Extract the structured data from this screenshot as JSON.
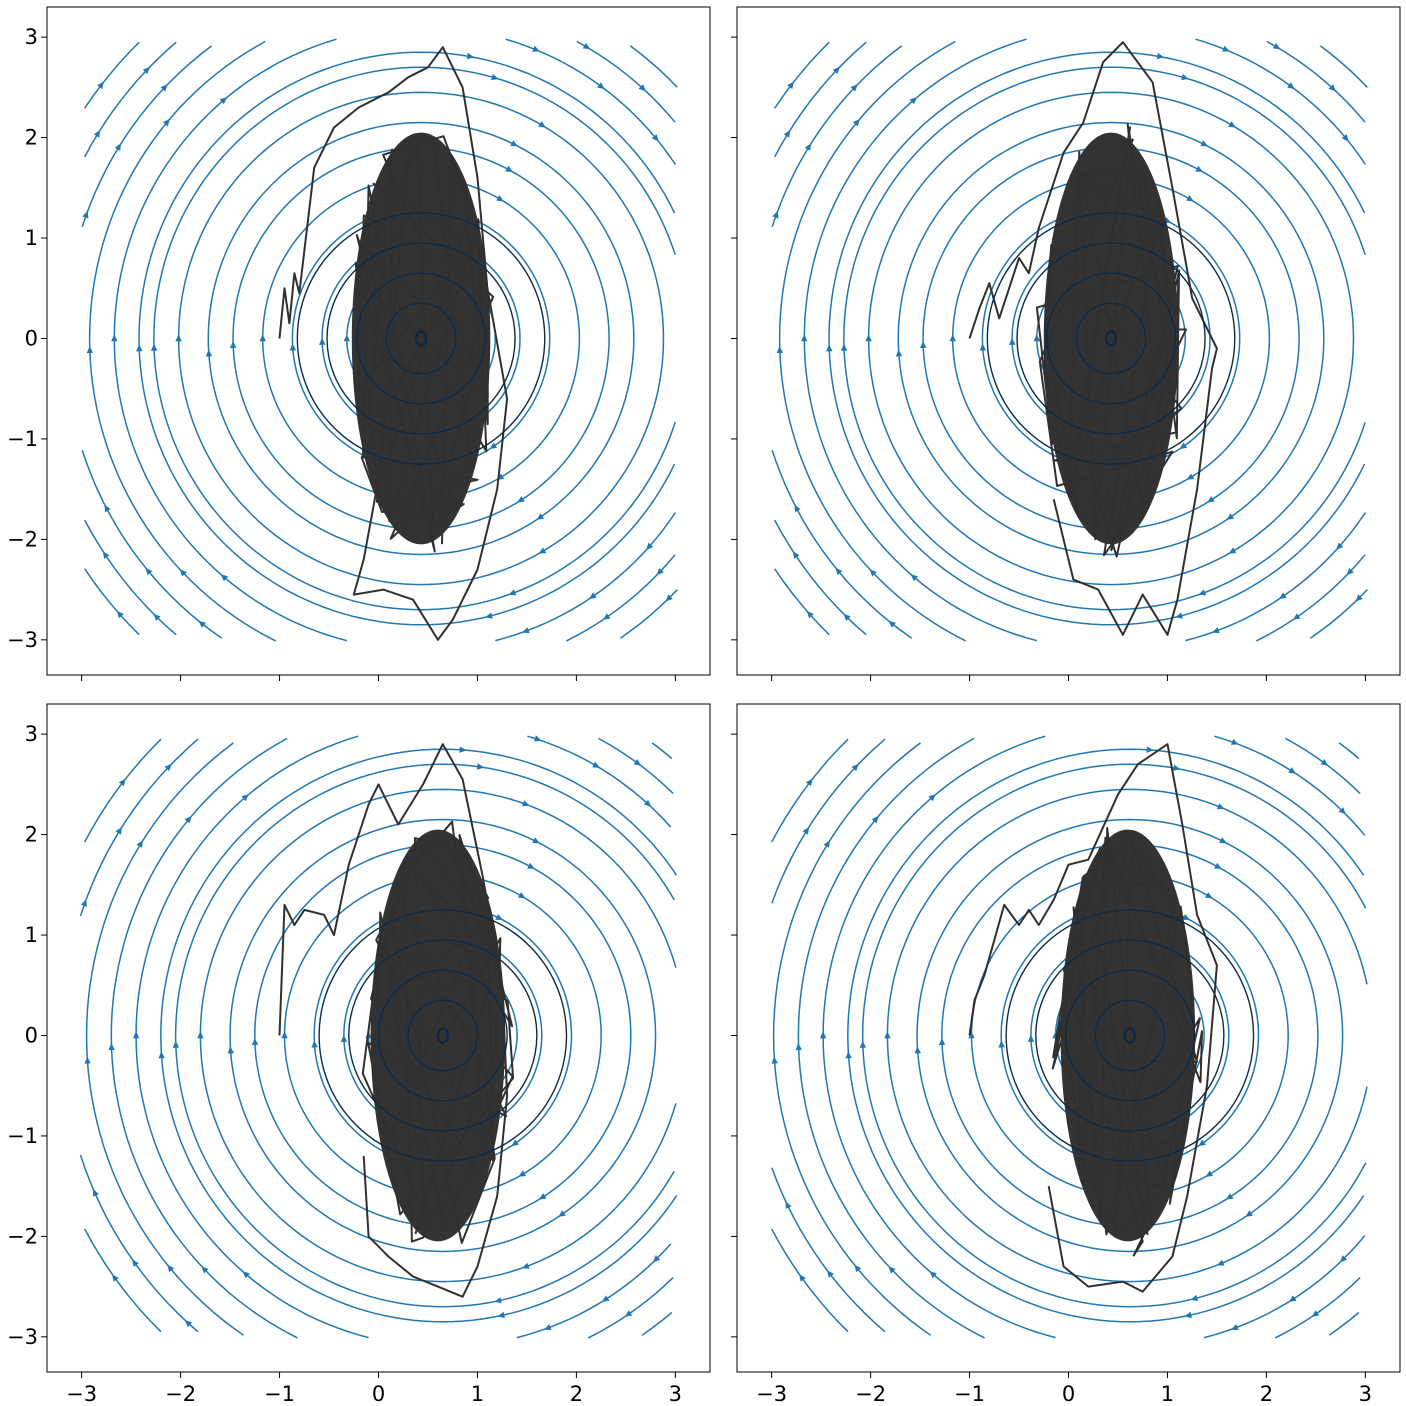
{
  "chart_data": [
    {
      "type": "streamplot",
      "panel": "top-left",
      "xlim": [
        -3.35,
        3.35
      ],
      "ylim": [
        -3.35,
        3.3
      ],
      "x_ticks": [
        -3,
        -2,
        -1,
        0,
        1,
        2,
        3
      ],
      "y_ticks": [
        -3,
        -2,
        -1,
        0,
        1,
        2,
        3
      ],
      "x_tick_labels_visible": false,
      "y_tick_labels_visible": true,
      "field_center": [
        0.43,
        0.0
      ],
      "stream_color": "#1f77b4",
      "trajectory_color": "#303030",
      "trajectory": [
        [
          -1.0,
          0.0
        ],
        [
          -0.95,
          0.5
        ],
        [
          -0.9,
          0.15
        ],
        [
          -0.85,
          0.65
        ],
        [
          -0.8,
          0.45
        ],
        [
          -0.65,
          1.7
        ],
        [
          -0.45,
          2.1
        ],
        [
          -0.2,
          2.3
        ],
        [
          0.1,
          2.45
        ],
        [
          0.3,
          2.6
        ],
        [
          0.5,
          2.7
        ],
        [
          0.65,
          2.9
        ],
        [
          0.85,
          2.5
        ],
        [
          1.0,
          1.6
        ],
        [
          1.1,
          0.5
        ],
        [
          1.3,
          -0.6
        ],
        [
          1.2,
          -1.5
        ],
        [
          1.0,
          -2.3
        ],
        [
          0.75,
          -2.8
        ],
        [
          0.6,
          -3.0
        ],
        [
          0.35,
          -2.6
        ],
        [
          0.05,
          -2.5
        ],
        [
          -0.25,
          -2.55
        ],
        [
          -0.15,
          -2.2
        ],
        [
          0.0,
          -1.4
        ]
      ],
      "density_ellipse": {
        "center": [
          0.43,
          0.0
        ],
        "rx": 0.7,
        "ry": 2.05
      }
    },
    {
      "type": "streamplot",
      "panel": "top-right",
      "xlim": [
        -3.35,
        3.35
      ],
      "ylim": [
        -3.35,
        3.3
      ],
      "x_ticks": [
        -3,
        -2,
        -1,
        0,
        1,
        2,
        3
      ],
      "y_ticks": [
        -3,
        -2,
        -1,
        0,
        1,
        2,
        3
      ],
      "x_tick_labels_visible": false,
      "y_tick_labels_visible": false,
      "field_center": [
        0.43,
        0.0
      ],
      "stream_color": "#1f77b4",
      "trajectory_color": "#303030",
      "trajectory": [
        [
          -1.0,
          0.0
        ],
        [
          -0.9,
          0.3
        ],
        [
          -0.8,
          0.55
        ],
        [
          -0.7,
          0.2
        ],
        [
          -0.6,
          0.5
        ],
        [
          -0.5,
          0.8
        ],
        [
          -0.4,
          0.65
        ],
        [
          -0.3,
          1.1
        ],
        [
          -0.2,
          1.4
        ],
        [
          -0.05,
          1.85
        ],
        [
          0.15,
          2.15
        ],
        [
          0.35,
          2.75
        ],
        [
          0.55,
          2.95
        ],
        [
          0.85,
          2.55
        ],
        [
          1.05,
          1.5
        ],
        [
          1.25,
          0.4
        ],
        [
          1.5,
          -0.1
        ],
        [
          1.45,
          -0.3
        ],
        [
          1.3,
          -1.5
        ],
        [
          1.1,
          -2.6
        ],
        [
          1.0,
          -2.95
        ],
        [
          0.75,
          -2.55
        ],
        [
          0.55,
          -2.95
        ],
        [
          0.3,
          -2.5
        ],
        [
          0.05,
          -2.4
        ],
        [
          -0.15,
          -1.6
        ]
      ],
      "density_ellipse": {
        "center": [
          0.43,
          0.0
        ],
        "rx": 0.68,
        "ry": 2.05
      }
    },
    {
      "type": "streamplot",
      "panel": "bottom-left",
      "xlim": [
        -3.35,
        3.35
      ],
      "ylim": [
        -3.35,
        3.3
      ],
      "x_ticks": [
        -3,
        -2,
        -1,
        0,
        1,
        2,
        3
      ],
      "y_ticks": [
        -3,
        -2,
        -1,
        0,
        1,
        2,
        3
      ],
      "x_tick_labels_visible": true,
      "y_tick_labels_visible": true,
      "field_center": [
        0.65,
        0.0
      ],
      "stream_color": "#1f77b4",
      "trajectory_color": "#303030",
      "trajectory": [
        [
          -1.0,
          0.0
        ],
        [
          -0.95,
          1.3
        ],
        [
          -0.85,
          1.1
        ],
        [
          -0.75,
          1.25
        ],
        [
          -0.55,
          1.2
        ],
        [
          -0.45,
          1.0
        ],
        [
          -0.3,
          1.7
        ],
        [
          -0.1,
          2.3
        ],
        [
          0.0,
          2.5
        ],
        [
          0.2,
          2.1
        ],
        [
          0.45,
          2.5
        ],
        [
          0.65,
          2.9
        ],
        [
          0.85,
          2.55
        ],
        [
          1.05,
          1.6
        ],
        [
          1.25,
          0.5
        ],
        [
          1.3,
          -0.6
        ],
        [
          1.2,
          -1.6
        ],
        [
          1.0,
          -2.3
        ],
        [
          0.85,
          -2.6
        ],
        [
          0.6,
          -2.5
        ],
        [
          0.35,
          -2.4
        ],
        [
          0.1,
          -2.2
        ],
        [
          -0.1,
          -2.0
        ],
        [
          -0.15,
          -1.2
        ]
      ],
      "density_ellipse": {
        "center": [
          0.6,
          0.0
        ],
        "rx": 0.68,
        "ry": 2.05
      }
    },
    {
      "type": "streamplot",
      "panel": "bottom-right",
      "xlim": [
        -3.35,
        3.35
      ],
      "ylim": [
        -3.35,
        3.3
      ],
      "x_ticks": [
        -3,
        -2,
        -1,
        0,
        1,
        2,
        3
      ],
      "y_ticks": [
        -3,
        -2,
        -1,
        0,
        1,
        2,
        3
      ],
      "x_tick_labels_visible": true,
      "y_tick_labels_visible": false,
      "field_center": [
        0.62,
        0.0
      ],
      "stream_color": "#1f77b4",
      "trajectory_color": "#303030",
      "trajectory": [
        [
          -1.0,
          0.0
        ],
        [
          -0.95,
          0.35
        ],
        [
          -0.85,
          0.6
        ],
        [
          -0.75,
          0.95
        ],
        [
          -0.65,
          1.3
        ],
        [
          -0.5,
          1.1
        ],
        [
          -0.4,
          1.25
        ],
        [
          -0.3,
          1.1
        ],
        [
          -0.15,
          1.35
        ],
        [
          0.0,
          1.7
        ],
        [
          0.2,
          1.75
        ],
        [
          0.5,
          2.4
        ],
        [
          0.7,
          2.7
        ],
        [
          1.0,
          2.9
        ],
        [
          1.15,
          2.1
        ],
        [
          1.3,
          1.2
        ],
        [
          1.5,
          0.7
        ],
        [
          1.4,
          -0.5
        ],
        [
          1.2,
          -1.6
        ],
        [
          1.05,
          -2.2
        ],
        [
          0.75,
          -2.55
        ],
        [
          0.55,
          -2.45
        ],
        [
          0.2,
          -2.5
        ],
        [
          -0.05,
          -2.3
        ],
        [
          -0.2,
          -1.5
        ]
      ],
      "density_ellipse": {
        "center": [
          0.6,
          0.0
        ],
        "rx": 0.68,
        "ry": 2.05
      }
    }
  ]
}
